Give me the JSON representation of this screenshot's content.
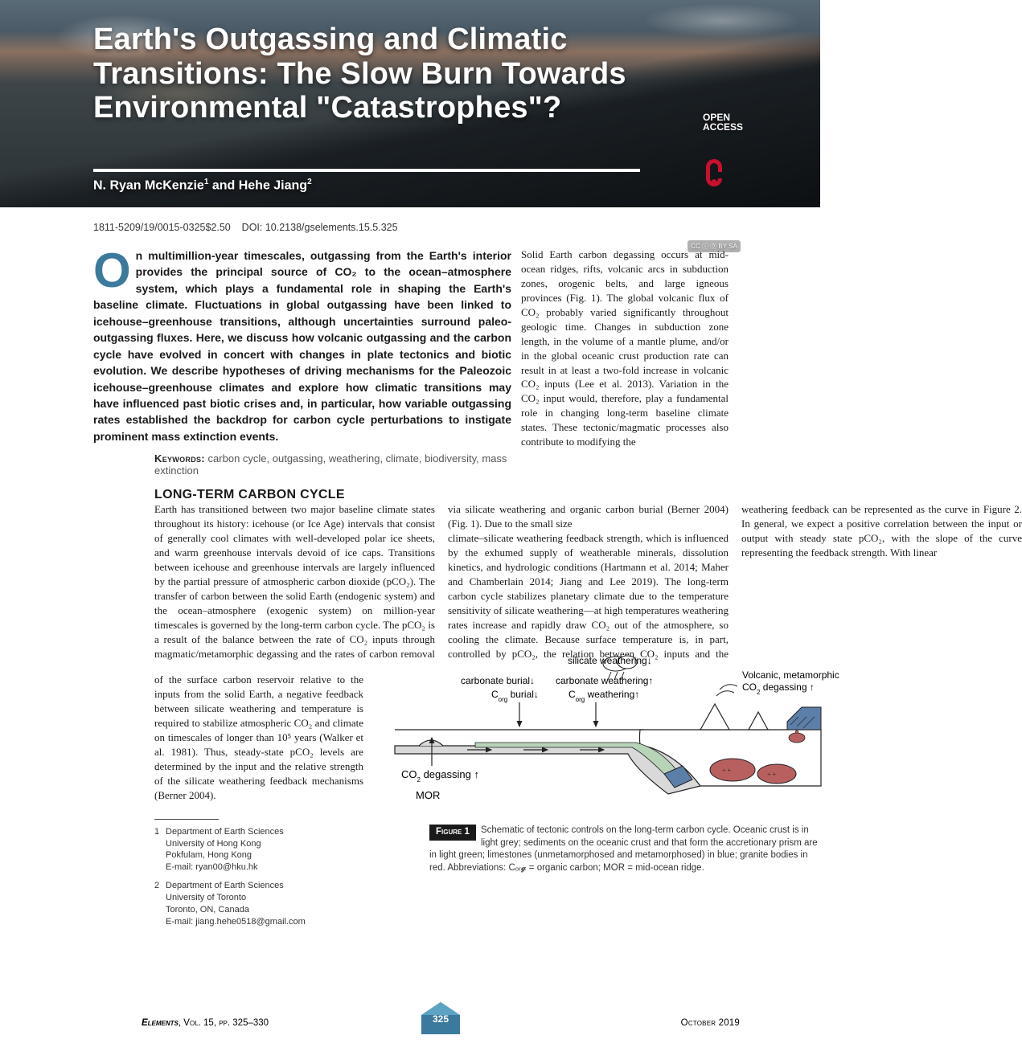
{
  "hero": {
    "title": "Earth's Outgassing and Climatic Transitions: The Slow Burn Towards Environmental \"Catastrophes\"?",
    "authors_html": "N. Ryan McKenzie<sup>1</sup> and Hehe Jiang<sup>2</sup>",
    "open_access_label": "OPEN ACCESS",
    "cc_text": "CC ⓘ ⓪ BY SA",
    "oa_color": "#c8102e"
  },
  "meta": {
    "issn_price": "1811-5209/19/0015-0325$2.50",
    "doi": "DOI: 10.2138/gselements.15.5.325"
  },
  "abstract": {
    "dropcap": "O",
    "text": "n multimillion-year timescales, outgassing from the Earth's interior provides the principal source of CO₂ to the ocean–atmosphere system, which plays a fundamental role in shaping the Earth's baseline climate. Fluctuations in global outgassing have been linked to icehouse–greenhouse transitions, although uncertainties surround paleo-outgassing fluxes. Here, we discuss how volcanic outgassing and the carbon cycle have evolved in concert with changes in plate tectonics and biotic evolution. We describe hypotheses of driving mechanisms for the Paleozoic icehouse–greenhouse climates and explore how climatic transitions may have influenced past biotic crises and, in particular, how variable outgassing rates established the backdrop for carbon cycle perturbations to instigate prominent mass extinction events."
  },
  "keywords": {
    "label": "Keywords:",
    "list": "carbon cycle, outgassing, weathering, climate, biodiversity, mass extinction"
  },
  "section1": {
    "heading": "LONG-TERM CARBON CYCLE",
    "para1": "Earth has transitioned between two major baseline climate states throughout its history: icehouse (or Ice Age) intervals that consist of generally cool climates with well-developed polar ice sheets, and warm greenhouse intervals devoid of ice caps. Transitions between icehouse and greenhouse intervals are largely influenced by the partial pressure of atmospheric carbon dioxide (pCO₂). The transfer of carbon between the solid Earth (endogenic system) and the ocean–atmosphere (exogenic system) on million-year timescales is governed by the long-term carbon cycle. The pCO₂ is a result of the balance between the rate of CO₂ inputs through magmatic/metamorphic degassing and the rates of carbon removal via silicate weathering and organic carbon burial (Berner 2004) (Fig. 1). Due to the small size",
    "right_para": "Solid Earth carbon degassing occurs at mid-ocean ridges, rifts, volcanic arcs in subduction zones, orogenic belts, and large igneous provinces (Fig. 1). The global volcanic flux of CO₂ probably varied significantly throughout geologic time. Changes in subduction zone length, in the volume of a mantle plume, and/or in the global oceanic crust production rate can result in at least a two-fold increase in volcanic CO₂ inputs (Lee et al. 2013). Variation in the CO₂ input would, therefore, play a fundamental role in changing long-term baseline climate states. These tectonic/magmatic processes also contribute to modifying the",
    "para2_mid": "climate–silicate weathering feedback strength, which is influenced by the exhumed supply of weatherable minerals, dissolution kinetics, and hydrologic conditions (Hartmann et al. 2014; Maher and Chamberlain 2014; Jiang and Lee 2019). The long-term carbon cycle stabilizes planetary climate due to the temperature sensitivity of silicate weathering—at high temperatures weathering rates increase and rapidly draw CO₂ out of the atmosphere, so cooling the climate. Because surface temperature is, in part, controlled by pCO₂, the relation between CO₂ inputs and the weathering feedback can be represented as the curve in Figure 2. In general, we expect a positive correlation between the input or output with steady state pCO₂, with the slope of the curve representing the feedback strength. With linear",
    "narrow": "of the surface carbon reservoir relative to the inputs from the solid Earth, a negative feedback between silicate weathering and temperature is required to stabilize atmospheric CO₂ and climate on timescales of longer than 10⁵ years (Walker et al. 1981). Thus, steady-state pCO₂ levels are determined by the input and the relative strength of the silicate weathering feedback mechanisms (Berner 2004)."
  },
  "affiliations": [
    {
      "num": "1",
      "text": "Department of Earth Sciences\nUniversity of Hong Kong\nPokfulam, Hong Kong\nE-mail: ryan00@hku.hk"
    },
    {
      "num": "2",
      "text": "Department of Earth Sciences\nUniversity of Toronto\nToronto, ON, Canada\nE-mail: jiang.hehe0518@gmail.com"
    }
  ],
  "figure1": {
    "badge": "Figure 1",
    "caption": "Schematic of tectonic controls on the long-term carbon cycle. Oceanic crust is in light grey; sediments on the oceanic crust and that form the accretionary prism are in light green; limestones (unmetamorphosed and metamorphosed) in blue; granite bodies in red. Abbreviations: Cₒᵣ𝓰 = organic carbon; MOR = mid-ocean ridge.",
    "labels": {
      "silicate_weathering": "silicate weathering↓",
      "carbonate_burial": "carbonate burial↓",
      "carbonate_weathering": "carbonate weathering↑",
      "corg_burial": "Cₒᵣ𝓰 burial↓",
      "corg_weathering": "Cₒᵣ𝓰 weathering↑",
      "volcanic_degassing": "Volcanic, metamorphic CO₂ degassing ↑",
      "co2_degassing": "CO₂ degassing ↑",
      "mor": "MOR"
    },
    "colors": {
      "ocean_crust": "#d9d9d9",
      "sediments": "#b8d4b8",
      "limestone": "#5b7fa8",
      "granite": "#b86060",
      "mantle": "#ffffff",
      "outline": "#222222",
      "arrow": "#222222",
      "water": "#ffffff"
    }
  },
  "footer": {
    "journal": "Elements",
    "vol_info": ", Vol. 15, pp. 325–330",
    "page_number": "325",
    "date": "October 2019",
    "badge_top": "#5ea3c4",
    "badge_bottom": "#3b7a9d"
  }
}
